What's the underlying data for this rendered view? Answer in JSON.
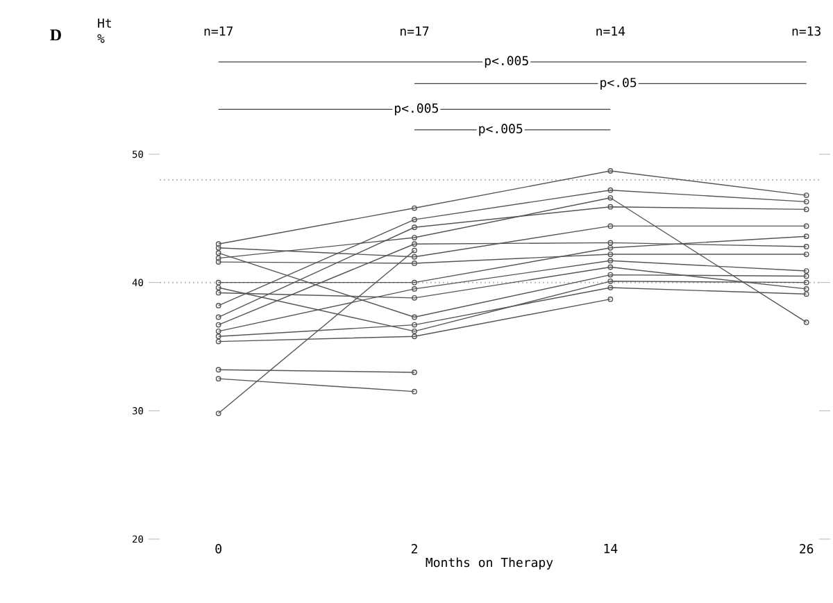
{
  "chart_data": {
    "type": "line",
    "xlabel": "Months on Therapy",
    "categories": [
      "0",
      "2",
      "14",
      "26"
    ],
    "ylim": [
      20,
      50
    ],
    "yticks": [
      20,
      30,
      40,
      50
    ],
    "marker": "circle",
    "line_style": "solid",
    "series": [
      {
        "color": "#555555",
        "values": [
          43.0,
          45.8,
          48.7,
          46.8
        ]
      },
      {
        "color": "#555555",
        "values": [
          42.7,
          42.0,
          44.4,
          44.4
        ]
      },
      {
        "color": "#555555",
        "values": [
          42.3,
          37.3,
          40.6,
          40.5
        ]
      },
      {
        "color": "#555555",
        "values": [
          41.9,
          43.5,
          46.6,
          36.9
        ]
      },
      {
        "color": "#555555",
        "values": [
          41.6,
          41.5,
          42.2,
          42.2
        ]
      },
      {
        "color": "#555555",
        "values": [
          40.0,
          40.0,
          42.7,
          43.6
        ]
      },
      {
        "color": "#555555",
        "values": [
          39.6,
          36.2,
          40.1,
          40.0
        ]
      },
      {
        "color": "#555555",
        "values": [
          39.2,
          38.8,
          41.2,
          39.5
        ]
      },
      {
        "color": "#555555",
        "values": [
          38.2,
          44.9,
          47.2,
          46.3
        ]
      },
      {
        "color": "#555555",
        "values": [
          37.3,
          44.3,
          45.9,
          45.7
        ]
      },
      {
        "color": "#555555",
        "values": [
          36.7,
          43.0,
          43.1,
          42.8
        ]
      },
      {
        "color": "#555555",
        "values": [
          36.2,
          39.5,
          41.7,
          40.9
        ]
      },
      {
        "color": "#555555",
        "values": [
          35.8,
          36.7,
          39.6,
          39.1
        ]
      },
      {
        "color": "#555555",
        "values": [
          35.4,
          35.8,
          38.7,
          null
        ]
      },
      {
        "color": "#555555",
        "values": [
          33.2,
          33.0,
          null,
          null
        ]
      },
      {
        "color": "#555555",
        "values": [
          32.5,
          31.5,
          null,
          null
        ]
      },
      {
        "color": "#555555",
        "values": [
          29.8,
          42.5,
          null,
          null
        ]
      }
    ],
    "ref_lines": [
      {
        "axis": "y",
        "value": 48,
        "color": "#bbbbbb",
        "line_style": "dotted"
      },
      {
        "axis": "y",
        "value": 40,
        "color": "#bbbbbb",
        "line_style": "dotted"
      }
    ],
    "annotations": [
      "D",
      "Ht %",
      "n=17",
      "n=17",
      "n=14",
      "n=13",
      "p<.005",
      "p<.05",
      "p<.005",
      "p<.005"
    ]
  }
}
